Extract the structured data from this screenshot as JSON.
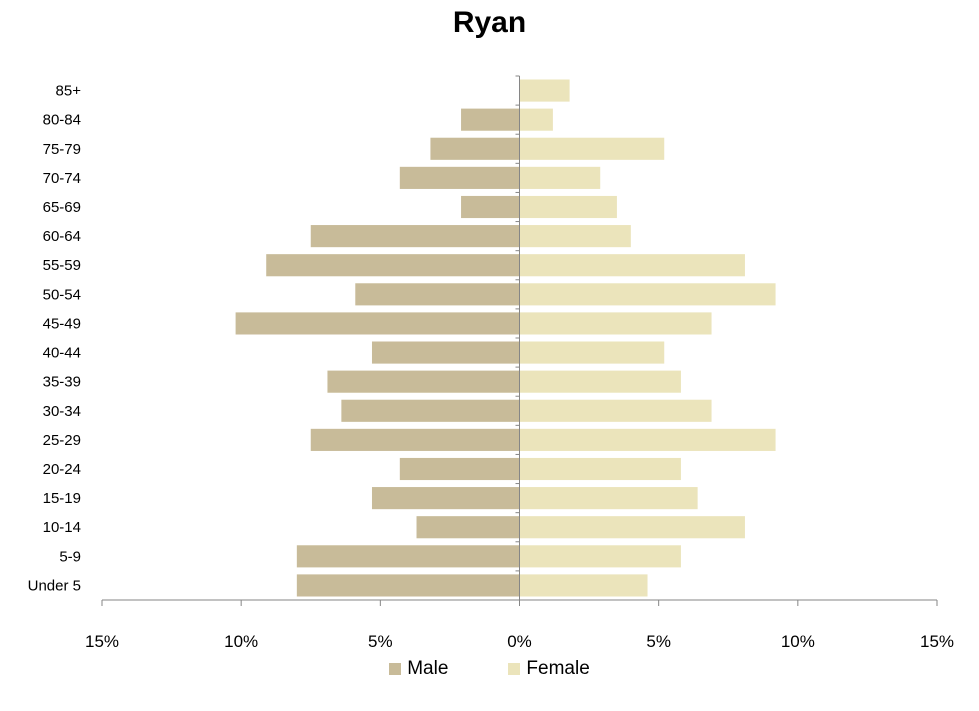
{
  "chart_data": {
    "type": "bar",
    "orientation": "horizontal",
    "title": "Ryan",
    "categories": [
      "Under 5",
      "5-9",
      "10-14",
      "15-19",
      "20-24",
      "25-29",
      "30-34",
      "35-39",
      "40-44",
      "45-49",
      "50-54",
      "55-59",
      "60-64",
      "65-69",
      "70-74",
      "75-79",
      "80-84",
      "85+"
    ],
    "series": [
      {
        "name": "Male",
        "color": "#c8bb99",
        "values": [
          -8.0,
          -8.0,
          -3.7,
          -5.3,
          -4.3,
          -7.5,
          -6.4,
          -6.9,
          -5.3,
          -10.2,
          -5.9,
          -9.1,
          -7.5,
          -2.1,
          -4.3,
          -3.2,
          -2.1,
          0
        ]
      },
      {
        "name": "Female",
        "color": "#ebe4bb",
        "values": [
          4.6,
          5.8,
          8.1,
          6.4,
          5.8,
          9.2,
          6.9,
          5.8,
          5.2,
          6.9,
          9.2,
          8.1,
          4.0,
          3.5,
          2.9,
          5.2,
          1.2,
          1.8
        ]
      }
    ],
    "xlim": [
      -15,
      15
    ],
    "xticks": [
      -15,
      -10,
      -5,
      0,
      5,
      10,
      15
    ],
    "xtick_labels": [
      "15%",
      "10%",
      "5%",
      "0%",
      "5%",
      "10%",
      "15%"
    ],
    "legend_position": "bottom"
  }
}
